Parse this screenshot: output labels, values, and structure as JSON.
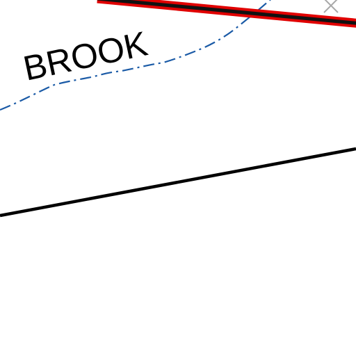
{
  "map": {
    "labels": {
      "brook": "BROOK"
    },
    "colors": {
      "background": "#ffffff",
      "road_casing": "#e00000",
      "road_core": "#111111",
      "stream": "#1a5aa6",
      "road": "#000000",
      "boundary_marker": "#a8a8a8",
      "label": "#000000"
    },
    "features": [
      {
        "kind": "road",
        "style": "black line with red casing"
      },
      {
        "kind": "stream",
        "style": "blue dash-dot line"
      },
      {
        "kind": "road",
        "style": "solid black line"
      },
      {
        "kind": "marker",
        "style": "grey x"
      }
    ]
  }
}
